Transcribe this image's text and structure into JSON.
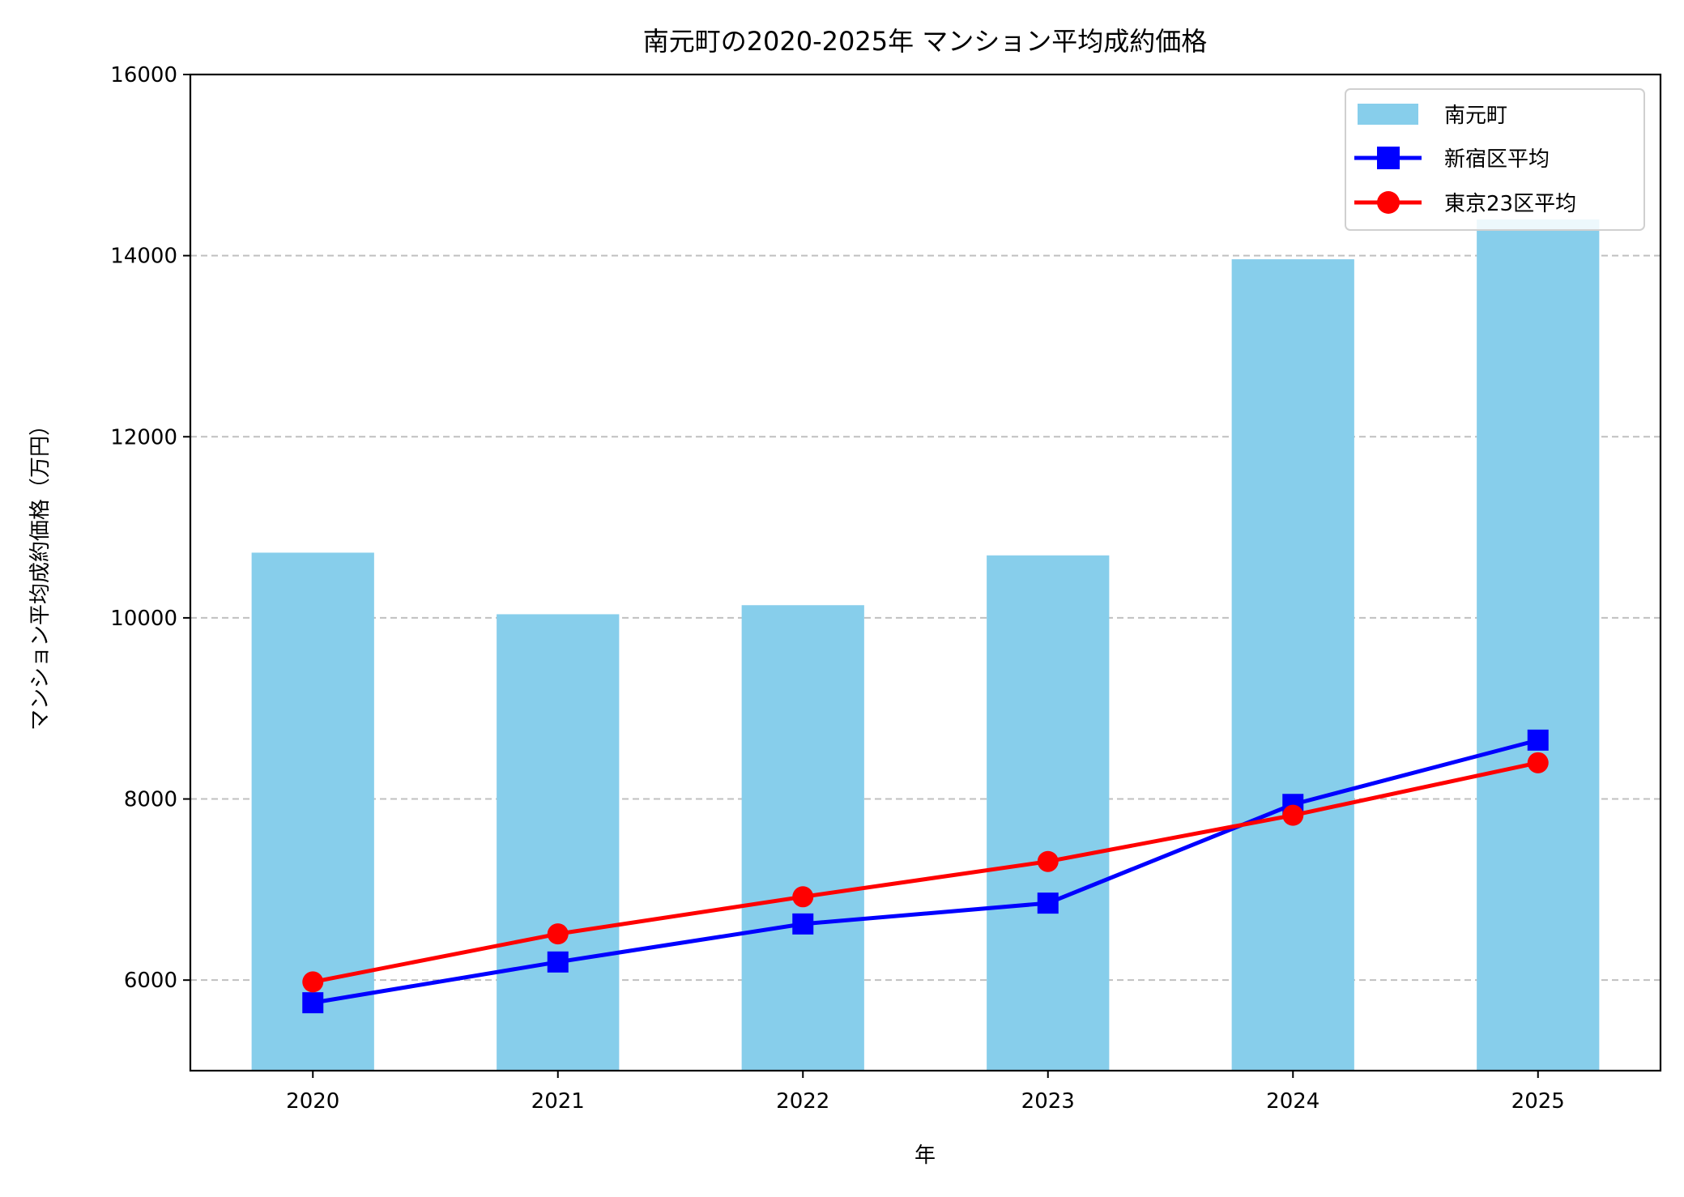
{
  "chart_data": {
    "type": "bar+line",
    "title": "南元町の2020-2025年 マンション平均成約価格",
    "xlabel": "年",
    "ylabel": "マンション平均成約価格（万円）",
    "categories": [
      "2020",
      "2021",
      "2022",
      "2023",
      "2024",
      "2025"
    ],
    "ylim": [
      5000,
      16000
    ],
    "yticks": [
      "6000",
      "8000",
      "10000",
      "12000",
      "14000",
      "16000"
    ],
    "grid": "y-dashed",
    "legend_position": "top-right",
    "series": [
      {
        "name": "南元町",
        "type": "bar",
        "color": "#87ceeb",
        "values": [
          10720,
          10040,
          10140,
          10690,
          13960,
          14400
        ]
      },
      {
        "name": "新宿区平均",
        "type": "line",
        "marker": "square",
        "color": "#0000ff",
        "values": [
          5750,
          6200,
          6620,
          6850,
          7940,
          8650
        ]
      },
      {
        "name": "東京23区平均",
        "type": "line",
        "marker": "circle",
        "color": "#ff0000",
        "values": [
          5980,
          6510,
          6920,
          7310,
          7820,
          8400
        ]
      }
    ]
  }
}
